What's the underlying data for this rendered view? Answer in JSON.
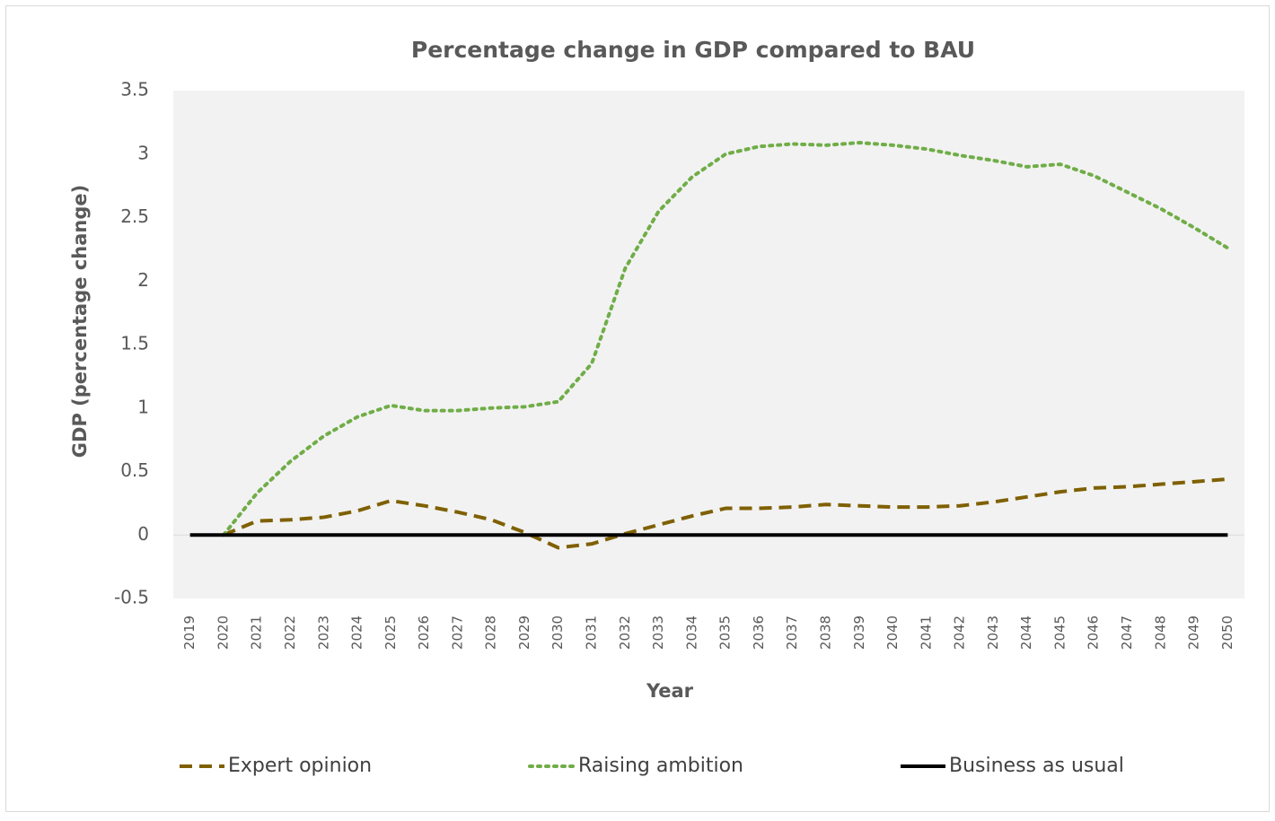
{
  "chart_data": {
    "type": "line",
    "title": "Percentage change in GDP compared to BAU",
    "x_label": "Year",
    "y_label": "GDP (percentage change)",
    "categories": [
      "2019",
      "2020",
      "2021",
      "2022",
      "2023",
      "2024",
      "2025",
      "2026",
      "2027",
      "2028",
      "2029",
      "2030",
      "2031",
      "2032",
      "2033",
      "2034",
      "2035",
      "2036",
      "2037",
      "2038",
      "2039",
      "2040",
      "2041",
      "2042",
      "2043",
      "2044",
      "2045",
      "2046",
      "2047",
      "2048",
      "2049",
      "2050"
    ],
    "series": [
      {
        "name": "Expert opinion",
        "color": "#7f6000",
        "dash": "dashed",
        "values": [
          null,
          0,
          0.11,
          0.12,
          0.14,
          0.19,
          0.27,
          0.23,
          0.18,
          0.12,
          0.02,
          -0.1,
          -0.07,
          0.01,
          0.08,
          0.15,
          0.21,
          0.21,
          0.22,
          0.24,
          0.23,
          0.22,
          0.22,
          0.23,
          0.26,
          0.3,
          0.34,
          0.37,
          0.38,
          0.4,
          0.42,
          0.44
        ]
      },
      {
        "name": "Raising ambition",
        "color": "#70ad47",
        "dash": "dotted",
        "values": [
          null,
          0,
          0.33,
          0.58,
          0.78,
          0.93,
          1.02,
          0.98,
          0.98,
          1.0,
          1.01,
          1.05,
          1.35,
          2.1,
          2.55,
          2.82,
          3.0,
          3.06,
          3.08,
          3.07,
          3.09,
          3.07,
          3.04,
          2.99,
          2.95,
          2.9,
          2.92,
          2.83,
          2.7,
          2.57,
          2.42,
          2.26
        ]
      },
      {
        "name": "Business as usual",
        "color": "#000000",
        "dash": "solid",
        "values": [
          0,
          0,
          0,
          0,
          0,
          0,
          0,
          0,
          0,
          0,
          0,
          0,
          0,
          0,
          0,
          0,
          0,
          0,
          0,
          0,
          0,
          0,
          0,
          0,
          0,
          0,
          0,
          0,
          0,
          0,
          0,
          0
        ]
      }
    ],
    "ylim": [
      -0.5,
      3.5
    ],
    "yticks": [
      -0.5,
      0,
      0.5,
      1,
      1.5,
      2,
      2.5,
      3,
      3.5
    ],
    "grid": false,
    "legend": "bottom"
  }
}
